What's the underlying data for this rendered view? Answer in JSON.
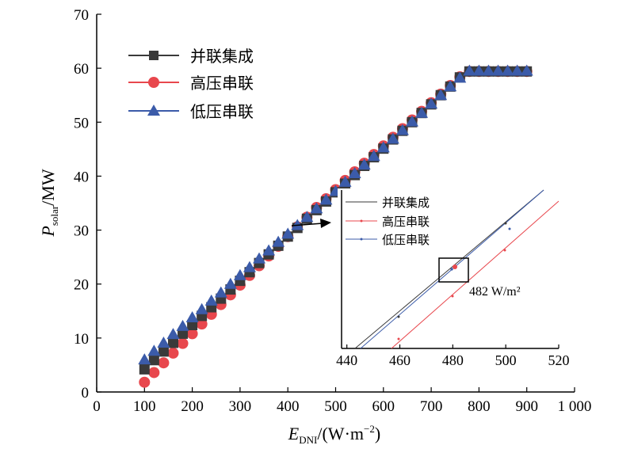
{
  "chart_data": {
    "type": "scatter",
    "xlabel_main": "E",
    "xlabel_sub": "DNI",
    "xlabel_unit": "/(W·m",
    "xlabel_sup": "−2",
    "xlabel_close": ")",
    "ylabel_main": "P",
    "ylabel_sub": "solar",
    "ylabel_unit": "/MW",
    "xlim": [
      0,
      1000
    ],
    "ylim": [
      0,
      70
    ],
    "x_ticks": [
      "0",
      "100",
      "200",
      "300",
      "400",
      "500",
      "600",
      "700",
      "800",
      "900",
      "1 000"
    ],
    "y_ticks": [
      "0",
      "10",
      "20",
      "30",
      "40",
      "50",
      "60",
      "70"
    ],
    "legend_position": "top-left",
    "x": [
      100,
      120,
      140,
      160,
      180,
      200,
      220,
      240,
      260,
      280,
      300,
      320,
      340,
      360,
      380,
      400,
      420,
      440,
      460,
      480,
      500,
      520,
      540,
      560,
      580,
      600,
      620,
      640,
      660,
      680,
      700,
      720,
      740,
      760,
      780,
      800,
      820,
      840,
      860,
      880,
      900
    ],
    "series": [
      {
        "name": "并联集成",
        "marker": "square",
        "color": "#3a3a3a",
        "values": [
          4.2,
          5.9,
          7.5,
          9.1,
          10.8,
          12.4,
          14.1,
          15.7,
          17.3,
          19.0,
          20.6,
          22.2,
          23.9,
          25.5,
          27.1,
          28.8,
          30.4,
          32.1,
          33.7,
          35.3,
          37.0,
          38.6,
          40.2,
          41.9,
          43.5,
          45.1,
          46.8,
          48.4,
          50.0,
          51.7,
          53.3,
          55.0,
          56.6,
          58.3,
          59.4,
          59.4,
          59.4,
          59.4,
          59.4,
          59.4,
          59.4
        ]
      },
      {
        "name": "高压串联",
        "marker": "circle",
        "color": "#e8474d",
        "values": [
          1.8,
          3.6,
          5.4,
          7.2,
          9.0,
          10.8,
          12.6,
          14.4,
          16.2,
          18.0,
          19.8,
          21.6,
          23.4,
          25.2,
          27.0,
          28.8,
          30.6,
          32.4,
          34.2,
          35.8,
          37.5,
          39.2,
          40.8,
          42.4,
          44.0,
          45.6,
          47.2,
          48.8,
          50.4,
          52.0,
          53.6,
          55.2,
          56.8,
          58.4,
          59.4,
          59.4,
          59.4,
          59.4,
          59.4,
          59.4,
          59.4
        ]
      },
      {
        "name": "低压串联",
        "marker": "triangle",
        "color": "#3b5ba9",
        "values": [
          6.0,
          7.6,
          9.1,
          10.7,
          12.2,
          13.8,
          15.3,
          16.9,
          18.4,
          20.0,
          21.6,
          23.1,
          24.7,
          26.2,
          27.8,
          29.3,
          30.9,
          32.4,
          34.0,
          35.6,
          37.2,
          38.9,
          40.5,
          42.1,
          43.7,
          45.3,
          46.9,
          48.5,
          50.1,
          51.7,
          53.4,
          55.0,
          56.6,
          58.2,
          59.5,
          59.5,
          59.5,
          59.5,
          59.5,
          59.5,
          59.5
        ]
      }
    ],
    "inset": {
      "xlim": [
        438,
        520
      ],
      "x_ticks": [
        "440",
        "460",
        "480",
        "500",
        "520"
      ],
      "legend": [
        "并联集成",
        "高压串联",
        "低压串联"
      ],
      "annotation": "482 W/m²",
      "crossing_x": 482
    }
  }
}
